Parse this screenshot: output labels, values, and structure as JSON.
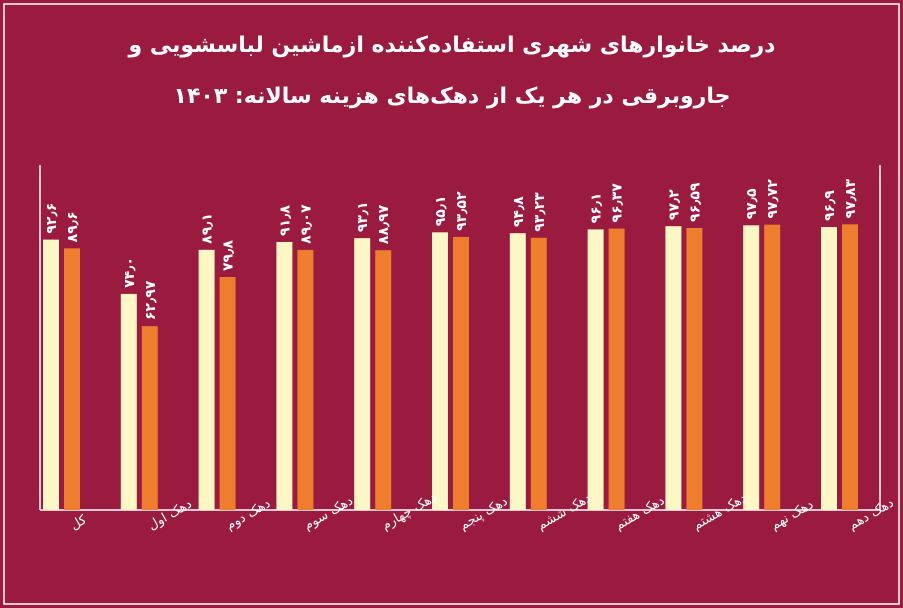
{
  "chart_data": {
    "type": "bar",
    "title": [
      "درصد خانوارهای شهری استفاده‌کننده ازماشین لباسشویی و",
      "جاروبرقی در هر یک از دهک‌های هزینه سالانه: ۱۴۰۳"
    ],
    "categories": [
      "کل",
      "دهک اول",
      "دهک دوم",
      "دهک سوم",
      "دهک چهارم",
      "دهک پنجم",
      "دهک ششم",
      "دهک هفتم",
      "دهک هشتم",
      "دهک نهم",
      "دهک دهم"
    ],
    "ylim": [
      0,
      100
    ],
    "series": [
      {
        "color": "#fdf7c6",
        "values": [
          92.6,
          74.0,
          89.1,
          91.8,
          93.1,
          95.1,
          94.8,
          96.1,
          97.2,
          97.5,
          96.9
        ],
        "value_labels": [
          "۹۲٫۶",
          "۷۴٫۰",
          "۸۹٫۱",
          "۹۱٫۸",
          "۹۳٫۱",
          "۹۵٫۱",
          "۹۴٫۸",
          "۹۶٫۱",
          "۹۷٫۲",
          "۹۷٫۵",
          "۹۶٫۹"
        ]
      },
      {
        "color": "#ee7d2e",
        "values": [
          89.6,
          62.97,
          79.8,
          89.07,
          88.97,
          93.52,
          93.23,
          96.37,
          96.59,
          97.72,
          97.83
        ],
        "value_labels": [
          "۸۹٫۶",
          "۶۲٫۹۷",
          "۷۹٫۸",
          "۸۹٫۰۷",
          "۸۸٫۹۷",
          "۹۳٫۵۲",
          "۹۳٫۲۳",
          "۹۶٫۳۷",
          "۹۶٫۵۹",
          "۹۷٫۷۲",
          "۹۷٫۸۳"
        ]
      }
    ]
  }
}
